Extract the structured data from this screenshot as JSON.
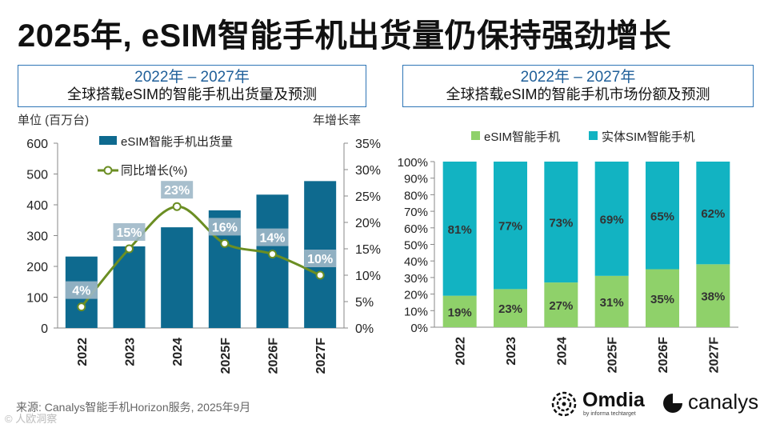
{
  "title": "2025年, eSIM智能手机出货量仍保持强劲增长",
  "left_box": {
    "line1": "2022年 – 2027年",
    "line2": "全球搭载eSIM的智能手机出货量及预测"
  },
  "right_box": {
    "line1": "2022年 – 2027年",
    "line2": "全球搭载eSIM的智能手机市场份额及预测"
  },
  "left_unit": "单位 (百万台)",
  "right_unit": "年增长率",
  "footer": "来源: Canalys智能手机Horizon服务, 2025年9月",
  "watermark": "© 人欧洞察",
  "logos": {
    "omdia": "Omdia",
    "omdia_sub": "by informa techtarget",
    "canalys": "canalys"
  },
  "colors": {
    "bar": "#0e6a8f",
    "line": "#6b8e23",
    "esim": "#8fd16a",
    "physical": "#12b3c2",
    "label_bg": "#9fb8c8"
  },
  "chart_data": [
    {
      "type": "bar+line",
      "title": "全球搭载eSIM的智能手机出货量及预测",
      "categories": [
        "2022",
        "2023",
        "2024",
        "2025F",
        "2026F",
        "2027F"
      ],
      "series": [
        {
          "name": "eSIM智能手机出货量",
          "axis": "left",
          "values": [
            232,
            265,
            327,
            382,
            433,
            477
          ]
        },
        {
          "name": "同比增长(%)",
          "axis": "right",
          "values": [
            4,
            15,
            23,
            16,
            14,
            10
          ],
          "labels": [
            "4%",
            "15%",
            "23%",
            "16%",
            "14%",
            "10%"
          ]
        }
      ],
      "y_left": {
        "label": "单位 (百万台)",
        "min": 0,
        "max": 600,
        "ticks": [
          "0",
          "100",
          "200",
          "300",
          "400",
          "500",
          "600"
        ]
      },
      "y_right": {
        "label": "年增长率",
        "min": 0,
        "max": 35,
        "ticks": [
          "0%",
          "5%",
          "10%",
          "15%",
          "20%",
          "25%",
          "30%",
          "35%"
        ]
      }
    },
    {
      "type": "stacked-bar",
      "title": "全球搭载eSIM的智能手机市场份额及预测",
      "categories": [
        "2022",
        "2023",
        "2024",
        "2025F",
        "2026F",
        "2027F"
      ],
      "series": [
        {
          "name": "eSIM智能手机",
          "values": [
            19,
            23,
            27,
            31,
            35,
            38
          ],
          "labels": [
            "19%",
            "23%",
            "27%",
            "31%",
            "35%",
            "38%"
          ]
        },
        {
          "name": "实体SIM智能手机",
          "values": [
            81,
            77,
            73,
            69,
            65,
            62
          ],
          "labels": [
            "81%",
            "77%",
            "73%",
            "69%",
            "65%",
            "62%"
          ]
        }
      ],
      "y": {
        "min": 0,
        "max": 100,
        "ticks": [
          "0%",
          "10%",
          "20%",
          "30%",
          "40%",
          "50%",
          "60%",
          "70%",
          "80%",
          "90%",
          "100%"
        ]
      }
    }
  ]
}
